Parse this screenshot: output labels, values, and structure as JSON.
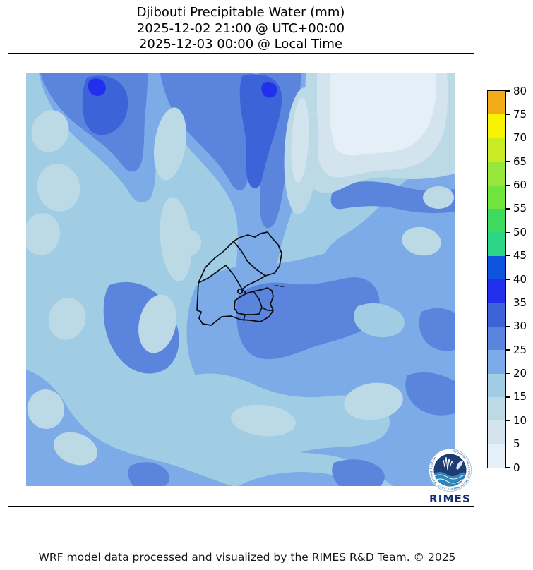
{
  "title": {
    "line1": "Djibouti Precipitable Water (mm)",
    "line2": "2025-12-02 21:00 @ UTC+00:00",
    "line3": "2025-12-03 00:00 @ Local Time"
  },
  "colorbar": {
    "units": "mm",
    "min": 0,
    "max": 80,
    "step": 5,
    "tick_labels": [
      "0",
      "5",
      "10",
      "15",
      "20",
      "25",
      "30",
      "35",
      "40",
      "45",
      "50",
      "55",
      "60",
      "65",
      "70",
      "75",
      "80"
    ],
    "palette": [
      "#e4eff7",
      "#d3e4ee",
      "#bcd9e6",
      "#a0cde4",
      "#7cabe8",
      "#5b84dc",
      "#3d63d8",
      "#2230ee",
      "#0c55dc",
      "#2bd687",
      "#3fdb5e",
      "#72e43e",
      "#97e73c",
      "#c9ec25",
      "#f8f303",
      "#f3ab19"
    ]
  },
  "logo": {
    "name": "RIMES",
    "ring_text": "Regional Integrated Multi-Hazard Early Warning System",
    "navy": "#1e3c72",
    "wave_blue": "#2f85bd",
    "text_navy": "#1a2f6e"
  },
  "footer": {
    "credit": "WRF model data processed and visualized by the RIMES R&D Team. © 2025"
  },
  "chart_data": {
    "type": "heatmap",
    "variable": "Precipitable Water",
    "units": "mm",
    "region": "Djibouti",
    "title": "Djibouti Precipitable Water (mm)",
    "valid_time_utc": "2025-12-02 21:00 @ UTC+00:00",
    "valid_time_local": "2025-12-03 00:00 @ Local Time",
    "colorbar_range": [
      0,
      80
    ],
    "colorbar_step": 5,
    "legend_position": "right",
    "palette_low_to_high": [
      "#e4eff7",
      "#d3e4ee",
      "#bcd9e6",
      "#a0cde4",
      "#7cabe8",
      "#5b84dc",
      "#3d63d8",
      "#2230ee",
      "#0c55dc",
      "#2bd687",
      "#3fdb5e",
      "#72e43e",
      "#97e73c",
      "#c9ec25",
      "#f8f303",
      "#f3ab19"
    ],
    "observed_map_value_range_mm": [
      5,
      40
    ],
    "map_features": [
      "Djibouti national and regional boundaries",
      "Gulf of Tadjoura coastline"
    ]
  }
}
